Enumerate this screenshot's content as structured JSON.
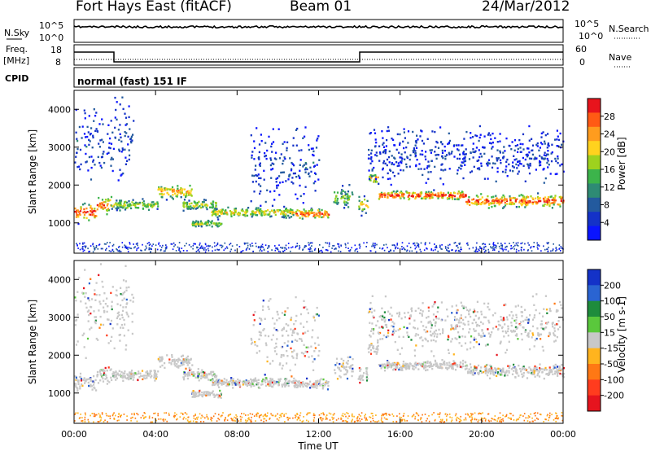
{
  "header": {
    "title": "Fort Hays East (fitACF)",
    "beam": "Beam 01",
    "date": "24/Mar/2012"
  },
  "status_panel": {
    "nsky_label": "N.Sky",
    "nsearch_label": "N.Search",
    "noise_ticks": [
      "10^5",
      "10^0"
    ],
    "freq_label": "Freq.",
    "freq_unit": "[MHz]",
    "freq_ticks": [
      "18",
      "8"
    ],
    "nave_label": "Nave",
    "nave_ticks": [
      "60",
      "0"
    ],
    "cpid_label": "CPID",
    "cpid_value": "normal (fast) 151 IF"
  },
  "chart_data": [
    {
      "type": "heatmap",
      "quantity": "Power",
      "xlabel": "",
      "ylabel": "Slant Range [km]",
      "colorbar_label": "Power [dB]",
      "colorbar_ticks": [
        "28",
        "24",
        "20",
        "16",
        "12",
        "8",
        "4"
      ],
      "colorbar_colors": [
        "#e8141c",
        "#ff5a14",
        "#ff9c1e",
        "#ffd21e",
        "#9ed21e",
        "#3cb44b",
        "#2e8b74",
        "#235a9e",
        "#1432c8",
        "#0a14ff"
      ],
      "xlim": [
        "00:00",
        "24:00"
      ],
      "ylim": [
        200,
        4500
      ],
      "y_ticks": [
        1000,
        2000,
        3000,
        4000
      ]
    },
    {
      "type": "heatmap",
      "quantity": "Velocity",
      "xlabel": "Time UT",
      "ylabel": "Slant Range [km]",
      "colorbar_label": "Velocity [m s-1]",
      "colorbar_ticks": [
        "200",
        "100",
        "50",
        "15",
        "-15",
        "-50",
        "-100",
        "-200"
      ],
      "colorbar_colors": [
        "#1432c8",
        "#2a64d2",
        "#1e8c3c",
        "#5ac83c",
        "#c8c8c8",
        "#ffb41e",
        "#ff7814",
        "#ff3c1e",
        "#e6141e"
      ],
      "x_ticks": [
        "00:00",
        "04:00",
        "08:00",
        "12:00",
        "16:00",
        "20:00",
        "00:00"
      ],
      "xlim": [
        "00:00",
        "24:00"
      ],
      "ylim": [
        200,
        4500
      ],
      "y_ticks": [
        1000,
        2000,
        3000,
        4000
      ]
    }
  ]
}
